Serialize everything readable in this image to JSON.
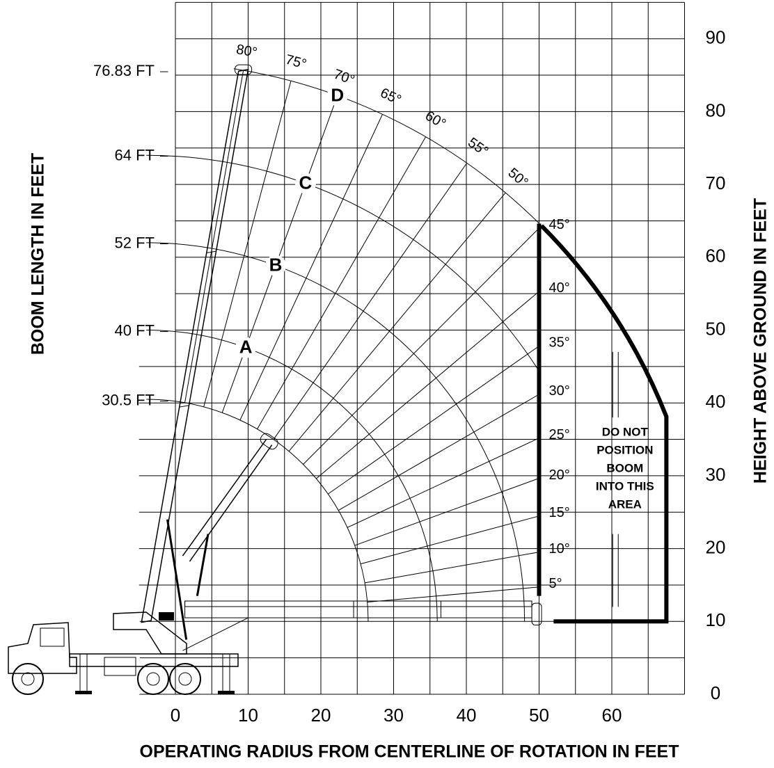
{
  "axes": {
    "x_label": "OPERATING RADIUS FROM CENTERLINE OF ROTATION IN FEET",
    "y_left_label": "BOOM LENGTH IN FEET",
    "y_right_label": "HEIGHT ABOVE GROUND IN FEET",
    "x_ticks": [
      0,
      10,
      20,
      30,
      40,
      50,
      60
    ],
    "y_ticks": [
      0,
      10,
      20,
      30,
      40,
      50,
      60,
      70,
      80,
      90
    ]
  },
  "boom_lengths": [
    "76.83  FT",
    "64  FT",
    "52  FT",
    "40  FT",
    "30.5  FT"
  ],
  "angles": [
    "80°",
    "75°",
    "70°",
    "65°",
    "60°",
    "55°",
    "50°",
    "45°",
    "40°",
    "35°",
    "30°",
    "25°",
    "20°",
    "15°",
    "10°",
    "5°"
  ],
  "sections": [
    "A",
    "B",
    "C",
    "D"
  ],
  "warning": [
    "DO NOT",
    "POSITION",
    "BOOM",
    "INTO THIS",
    "AREA"
  ]
}
